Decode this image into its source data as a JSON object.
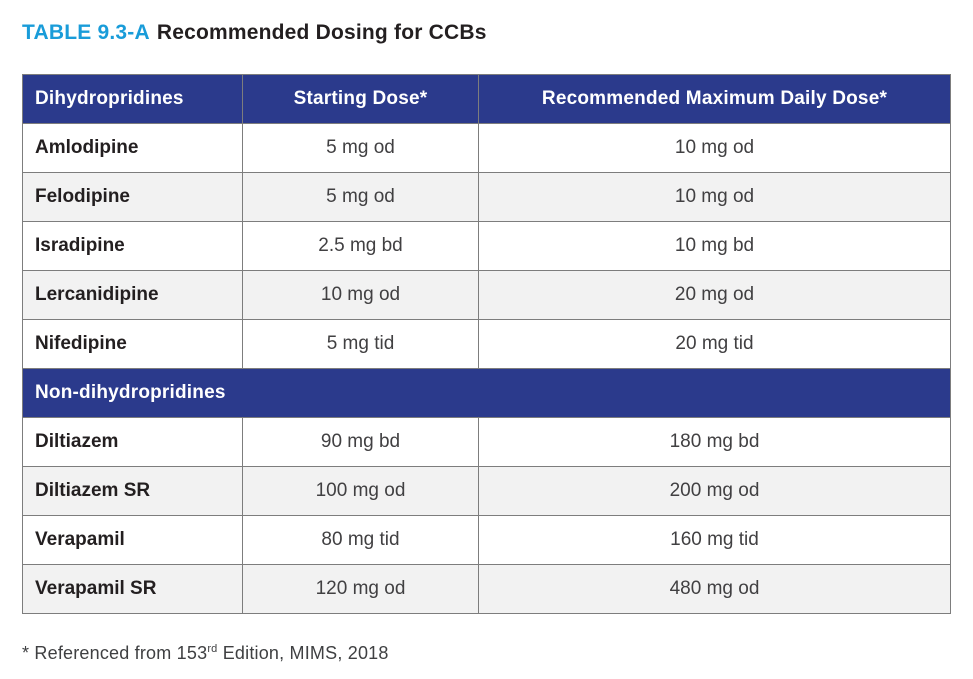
{
  "title": {
    "label": "TABLE 9.3-A",
    "text": "Recommended Dosing for CCBs"
  },
  "colors": {
    "accent_blue": "#199cd9",
    "header_navy": "#2b3a8c",
    "row_alt_gray": "#f2f2f2",
    "border_gray": "#7d7d7d",
    "text_dark": "#231f20",
    "text_value": "#414042"
  },
  "table": {
    "columns": [
      "Dihydropridines",
      "Starting Dose*",
      "Recommended Maximum Daily Dose*"
    ],
    "section2_header": "Non-dihydropridines",
    "rows": [
      {
        "drug": "Amlodipine",
        "start": "5 mg od",
        "max": "10 mg od"
      },
      {
        "drug": "Felodipine",
        "start": "5 mg od",
        "max": "10 mg od"
      },
      {
        "drug": "Isradipine",
        "start": "2.5 mg bd",
        "max": "10 mg bd"
      },
      {
        "drug": "Lercanidipine",
        "start": "10 mg od",
        "max": "20 mg od"
      },
      {
        "drug": "Nifedipine",
        "start": "5 mg tid",
        "max": "20 mg tid"
      },
      {
        "drug": "Diltiazem",
        "start": "90 mg bd",
        "max": "180 mg bd"
      },
      {
        "drug": "Diltiazem SR",
        "start": "100 mg od",
        "max": "200 mg od"
      },
      {
        "drug": "Verapamil",
        "start": "80 mg tid",
        "max": "160 mg tid"
      },
      {
        "drug": "Verapamil SR",
        "start": "120 mg od",
        "max": "480 mg od"
      }
    ]
  },
  "footnote": {
    "prefix": "* Referenced from 153",
    "superscript": "rd",
    "suffix": " Edition, MIMS, 2018"
  }
}
